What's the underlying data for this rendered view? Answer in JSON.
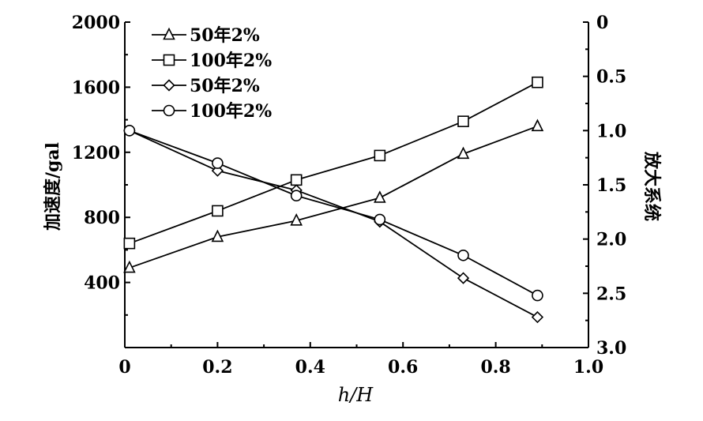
{
  "chart_data": {
    "type": "line",
    "xlabel": "h/H",
    "ylabel": "加速度/gal",
    "y2label": "放大系统",
    "xlim": [
      0,
      1.0
    ],
    "ylim": [
      0,
      2000
    ],
    "y2lim": [
      0,
      3.0
    ],
    "y2_inverted": true,
    "x_ticks": [
      "0",
      "0.2",
      "0.4",
      "0.6",
      "0.8",
      "1.0"
    ],
    "y_ticks": [
      "400",
      "800",
      "1200",
      "1600",
      "2000"
    ],
    "y2_ticks": [
      "0",
      "0.5",
      "1.0",
      "1.5",
      "2.0",
      "2.5",
      "3.0"
    ],
    "grid": false,
    "legend_position": "top-left",
    "series": [
      {
        "name": "50年2%",
        "axis": "left",
        "marker": "triangle",
        "x": [
          0.01,
          0.2,
          0.37,
          0.55,
          0.73,
          0.89
        ],
        "values": [
          490,
          680,
          780,
          920,
          1190,
          1360
        ]
      },
      {
        "name": "100年2%",
        "axis": "left",
        "marker": "square",
        "x": [
          0.01,
          0.2,
          0.37,
          0.55,
          0.73,
          0.89
        ],
        "values": [
          640,
          840,
          1030,
          1180,
          1390,
          1630
        ]
      },
      {
        "name": "50年2%",
        "axis": "right",
        "marker": "diamond",
        "x": [
          0.01,
          0.2,
          0.37,
          0.55,
          0.73,
          0.89
        ],
        "values": [
          1.0,
          1.37,
          1.55,
          1.84,
          2.36,
          2.72
        ]
      },
      {
        "name": "100年2%",
        "axis": "right",
        "marker": "circle",
        "x": [
          0.01,
          0.2,
          0.37,
          0.55,
          0.73,
          0.89
        ],
        "values": [
          1.0,
          1.3,
          1.6,
          1.82,
          2.15,
          2.52
        ]
      }
    ]
  }
}
